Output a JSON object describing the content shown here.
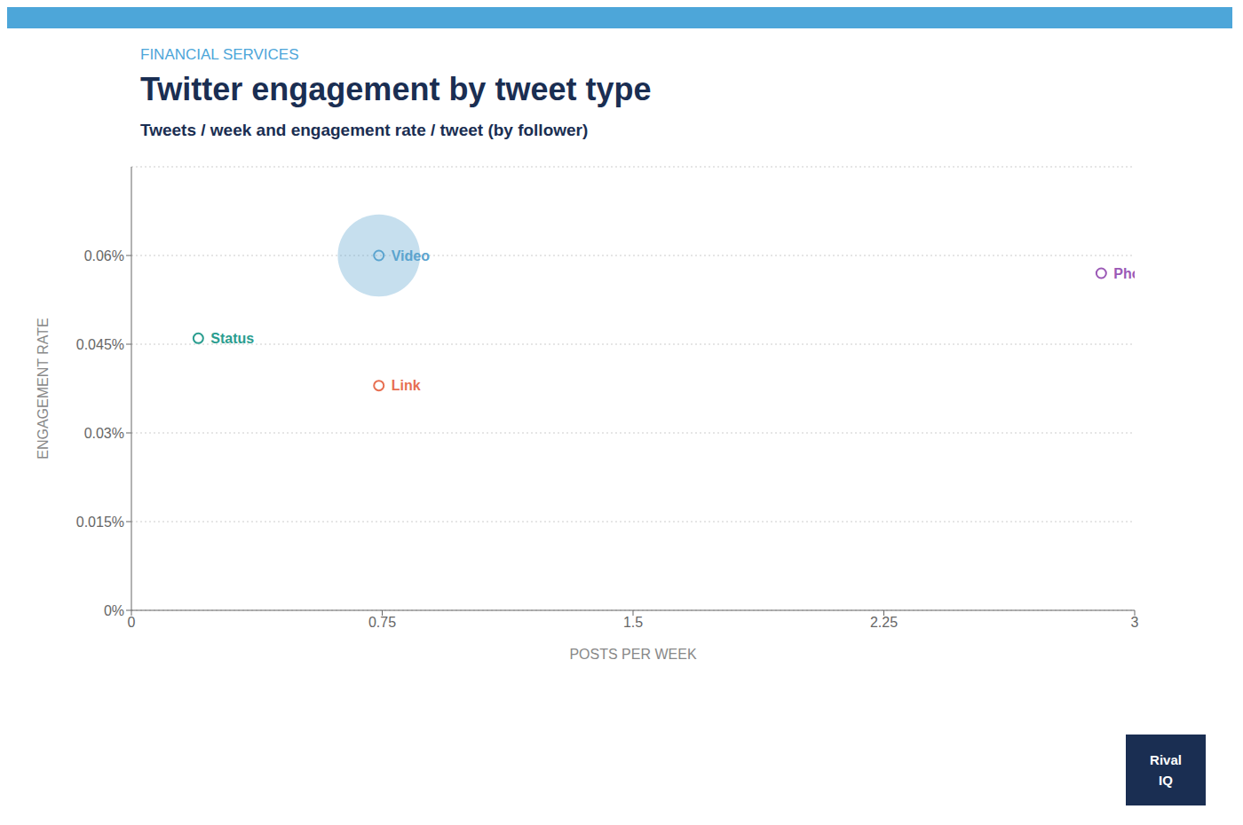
{
  "chart_data": {
    "type": "scatter",
    "title": "Twitter engagement by tweet type",
    "subtitle": "Tweets / week and engagement rate / tweet (by follower)",
    "annotations": [
      "FINANCIAL SERVICES",
      "Rival",
      "IQ"
    ],
    "x_label": "POSTS PER WEEK",
    "y_label": "ENGAGEMENT RATE",
    "xlim": [
      0,
      3
    ],
    "ylim": [
      0,
      0.00075
    ],
    "xticks": [
      0,
      0.75,
      1.5,
      2.25,
      3
    ],
    "yticks": [
      {
        "value": 0,
        "label": "0%"
      },
      {
        "value": 0.00015,
        "label": "0.015%"
      },
      {
        "value": 0.0003,
        "label": "0.03%"
      },
      {
        "value": 0.00045,
        "label": "0.045%"
      },
      {
        "value": 0.0006,
        "label": "0.06%"
      }
    ],
    "grid": true,
    "series": [
      {
        "name": "Video",
        "color": "#5ba4cf",
        "x": [
          0.74
        ],
        "values": [
          0.0006
        ],
        "size": [
          3500
        ]
      },
      {
        "name": "Status",
        "color": "#2a9d8f",
        "x": [
          0.2
        ],
        "values": [
          0.00046
        ]
      },
      {
        "name": "Link",
        "color": "#e76f51",
        "x": [
          0.74
        ],
        "values": [
          0.00038
        ]
      },
      {
        "name": "Photo",
        "color": "#9b59b6",
        "x": [
          2.9
        ],
        "values": [
          0.00057
        ]
      }
    ]
  }
}
